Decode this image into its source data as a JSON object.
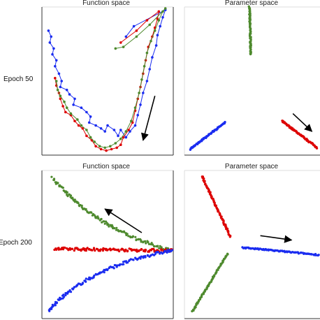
{
  "rows": [
    {
      "label": "Epoch 50"
    },
    {
      "label": "Epoch 200"
    }
  ],
  "colors": {
    "blue": "#1a2cf0",
    "red": "#dd0000",
    "green": "#4e8a2e",
    "arrow": "#000000",
    "border": "#333333",
    "top_border": "#dddddd"
  },
  "chart_data": [
    {
      "type": "line",
      "title": "Function space",
      "xlabel": "",
      "ylabel": "",
      "xlim": [
        0,
        1
      ],
      "ylim": [
        0,
        1
      ],
      "grid": false,
      "series": [
        {
          "color": "blue",
          "points": [
            [
              0.05,
              0.84
            ],
            [
              0.07,
              0.8
            ],
            [
              0.06,
              0.76
            ],
            [
              0.09,
              0.72
            ],
            [
              0.08,
              0.68
            ],
            [
              0.11,
              0.64
            ],
            [
              0.1,
              0.6
            ],
            [
              0.13,
              0.55
            ],
            [
              0.15,
              0.5
            ],
            [
              0.14,
              0.46
            ],
            [
              0.19,
              0.44
            ],
            [
              0.21,
              0.41
            ],
            [
              0.25,
              0.38
            ],
            [
              0.24,
              0.34
            ],
            [
              0.3,
              0.32
            ],
            [
              0.34,
              0.29
            ],
            [
              0.37,
              0.26
            ],
            [
              0.36,
              0.22
            ],
            [
              0.41,
              0.2
            ],
            [
              0.45,
              0.18
            ],
            [
              0.48,
              0.16
            ],
            [
              0.5,
              0.2
            ],
            [
              0.55,
              0.17
            ],
            [
              0.58,
              0.13
            ],
            [
              0.6,
              0.17
            ],
            [
              0.64,
              0.12
            ],
            [
              0.67,
              0.16
            ],
            [
              0.71,
              0.2
            ],
            [
              0.73,
              0.27
            ],
            [
              0.75,
              0.34
            ],
            [
              0.77,
              0.42
            ],
            [
              0.8,
              0.5
            ],
            [
              0.82,
              0.58
            ],
            [
              0.84,
              0.66
            ],
            [
              0.87,
              0.74
            ],
            [
              0.88,
              0.81
            ],
            [
              0.9,
              0.87
            ],
            [
              0.92,
              0.93
            ],
            [
              0.94,
              0.98
            ],
            [
              0.7,
              0.87
            ],
            [
              0.64,
              0.8
            ]
          ]
        },
        {
          "color": "red",
          "points": [
            [
              0.1,
              0.52
            ],
            [
              0.11,
              0.47
            ],
            [
              0.13,
              0.42
            ],
            [
              0.14,
              0.38
            ],
            [
              0.16,
              0.33
            ],
            [
              0.18,
              0.29
            ],
            [
              0.22,
              0.27
            ],
            [
              0.25,
              0.23
            ],
            [
              0.28,
              0.2
            ],
            [
              0.31,
              0.18
            ],
            [
              0.34,
              0.13
            ],
            [
              0.38,
              0.1
            ],
            [
              0.41,
              0.06
            ],
            [
              0.45,
              0.04
            ],
            [
              0.49,
              0.03
            ],
            [
              0.53,
              0.04
            ],
            [
              0.57,
              0.05
            ],
            [
              0.6,
              0.07
            ],
            [
              0.62,
              0.12
            ],
            [
              0.66,
              0.17
            ],
            [
              0.69,
              0.22
            ],
            [
              0.71,
              0.3
            ],
            [
              0.73,
              0.38
            ],
            [
              0.75,
              0.46
            ],
            [
              0.77,
              0.55
            ],
            [
              0.79,
              0.64
            ],
            [
              0.81,
              0.73
            ],
            [
              0.84,
              0.8
            ],
            [
              0.86,
              0.86
            ],
            [
              0.88,
              0.92
            ],
            [
              0.89,
              0.97
            ],
            [
              0.8,
              0.91
            ],
            [
              0.72,
              0.84
            ],
            [
              0.6,
              0.76
            ]
          ]
        },
        {
          "color": "green",
          "points": [
            [
              0.11,
              0.5
            ],
            [
              0.12,
              0.44
            ],
            [
              0.14,
              0.4
            ],
            [
              0.17,
              0.36
            ],
            [
              0.19,
              0.32
            ],
            [
              0.22,
              0.28
            ],
            [
              0.27,
              0.24
            ],
            [
              0.3,
              0.2
            ],
            [
              0.34,
              0.17
            ],
            [
              0.37,
              0.12
            ],
            [
              0.4,
              0.09
            ],
            [
              0.44,
              0.06
            ],
            [
              0.48,
              0.05
            ],
            [
              0.52,
              0.06
            ],
            [
              0.56,
              0.08
            ],
            [
              0.6,
              0.11
            ],
            [
              0.64,
              0.16
            ],
            [
              0.68,
              0.23
            ],
            [
              0.71,
              0.32
            ],
            [
              0.74,
              0.42
            ],
            [
              0.76,
              0.51
            ],
            [
              0.78,
              0.6
            ],
            [
              0.8,
              0.69
            ],
            [
              0.83,
              0.77
            ],
            [
              0.86,
              0.84
            ],
            [
              0.89,
              0.91
            ],
            [
              0.92,
              0.97
            ],
            [
              0.94,
              0.99
            ],
            [
              0.82,
              0.88
            ],
            [
              0.72,
              0.8
            ],
            [
              0.62,
              0.73
            ],
            [
              0.56,
              0.72
            ]
          ]
        }
      ],
      "arrows": [
        {
          "from": [
            0.86,
            0.4
          ],
          "to": [
            0.77,
            0.1
          ]
        }
      ]
    },
    {
      "type": "scatter",
      "title": "Parameter space",
      "xlabel": "",
      "ylabel": "",
      "xlim": [
        0,
        1
      ],
      "ylim": [
        0,
        1
      ],
      "grid": false,
      "series": [
        {
          "color": "green",
          "segment": [
            [
              0.48,
              1.0
            ],
            [
              0.49,
              0.68
            ]
          ]
        },
        {
          "color": "blue",
          "segment": [
            [
              0.04,
              0.04
            ],
            [
              0.3,
              0.22
            ]
          ]
        },
        {
          "color": "red",
          "segment": [
            [
              0.72,
              0.23
            ],
            [
              0.98,
              0.05
            ]
          ]
        }
      ],
      "arrows": [
        {
          "from": [
            0.8,
            0.28
          ],
          "to": [
            0.94,
            0.16
          ]
        }
      ]
    },
    {
      "type": "scatter",
      "title": "Function space",
      "xlabel": "",
      "ylabel": "",
      "xlim": [
        0,
        1
      ],
      "ylim": [
        0,
        1
      ],
      "grid": false,
      "series": [
        {
          "color": "green",
          "curve": [
            [
              0.08,
              0.95
            ],
            [
              0.3,
              0.72
            ],
            [
              0.6,
              0.55
            ],
            [
              0.99,
              0.46
            ]
          ]
        },
        {
          "color": "red",
          "curve": [
            [
              0.1,
              0.47
            ],
            [
              0.4,
              0.47
            ],
            [
              0.7,
              0.46
            ],
            [
              0.99,
              0.46
            ]
          ]
        },
        {
          "color": "blue",
          "curve": [
            [
              0.05,
              0.05
            ],
            [
              0.25,
              0.26
            ],
            [
              0.6,
              0.4
            ],
            [
              0.99,
              0.46
            ]
          ]
        }
      ],
      "arrows": [
        {
          "from": [
            0.76,
            0.58
          ],
          "to": [
            0.48,
            0.74
          ]
        }
      ]
    },
    {
      "type": "scatter",
      "title": "Parameter space",
      "xlabel": "",
      "ylabel": "",
      "xlim": [
        0,
        1
      ],
      "ylim": [
        0,
        1
      ],
      "grid": false,
      "series": [
        {
          "color": "red",
          "segment": [
            [
              0.13,
              0.96
            ],
            [
              0.34,
              0.55
            ]
          ]
        },
        {
          "color": "green",
          "segment": [
            [
              0.32,
              0.44
            ],
            [
              0.06,
              0.05
            ]
          ]
        },
        {
          "color": "blue",
          "segment": [
            [
              0.43,
              0.48
            ],
            [
              0.99,
              0.43
            ]
          ]
        }
      ],
      "arrows": [
        {
          "from": [
            0.56,
            0.56
          ],
          "to": [
            0.79,
            0.53
          ]
        }
      ]
    }
  ]
}
